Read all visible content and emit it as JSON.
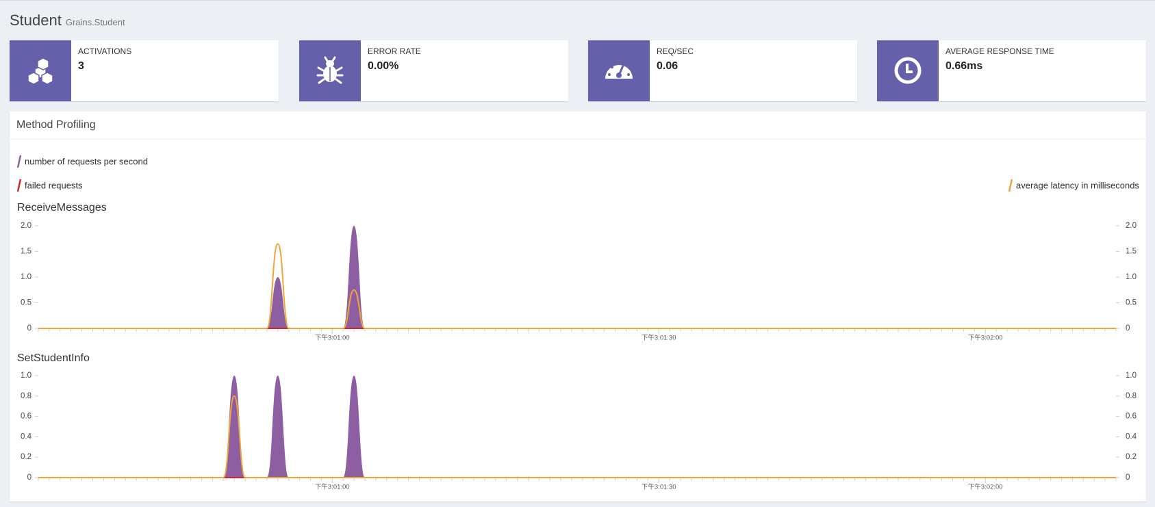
{
  "header": {
    "title": "Student",
    "subtitle": "Grains.Student"
  },
  "cards": [
    {
      "label": "ACTIVATIONS",
      "value": "3"
    },
    {
      "label": "ERROR RATE",
      "value": "0.00%"
    },
    {
      "label": "REQ/SEC",
      "value": "0.06"
    },
    {
      "label": "AVERAGE RESPONSE TIME",
      "value": "0.66ms"
    }
  ],
  "panel": {
    "title": "Method Profiling"
  },
  "chart_data": [
    {
      "type": "line",
      "title": "ReceiveMessages",
      "categories": [
        null,
        null,
        null,
        null,
        null,
        null,
        null,
        null,
        null,
        null,
        null,
        null,
        null,
        null,
        null,
        null,
        null,
        null,
        null,
        null,
        null,
        null,
        null,
        null,
        null,
        null,
        null,
        "下午3:01:00",
        null,
        null,
        null,
        null,
        null,
        null,
        null,
        null,
        null,
        null,
        null,
        null,
        null,
        null,
        null,
        null,
        null,
        null,
        null,
        null,
        null,
        null,
        null,
        null,
        null,
        null,
        null,
        null,
        null,
        "下午3:01:30",
        null,
        null,
        null,
        null,
        null,
        null,
        null,
        null,
        null,
        null,
        null,
        null,
        null,
        null,
        null,
        null,
        null,
        null,
        null,
        null,
        null,
        null,
        null,
        null,
        null,
        null,
        null,
        null,
        null,
        "下午3:02:00",
        null,
        null,
        null,
        null,
        null,
        null,
        null,
        null,
        null,
        null,
        null,
        null
      ],
      "ylim": [
        0,
        2
      ],
      "yticks": [
        0,
        0.5,
        {
          "value": 1,
          "label": "1.0"
        },
        1.5,
        {
          "value": 2,
          "label": "2.0"
        }
      ],
      "y2lim": [
        0,
        2
      ],
      "y2ticks": [
        0,
        0.5,
        {
          "value": 1,
          "label": "1.0"
        },
        1.5,
        {
          "value": 2,
          "label": "2.0"
        }
      ],
      "series": [
        {
          "name": "number of requests per second",
          "color": "#8e5ea2",
          "fill": true,
          "values": [
            0,
            0,
            0,
            0,
            0,
            0,
            0,
            0,
            0,
            0,
            0,
            0,
            0,
            0,
            0,
            0,
            0,
            0,
            0,
            0,
            0,
            0,
            1,
            0,
            0,
            0,
            0,
            0,
            0,
            2,
            0,
            0,
            0,
            0,
            0,
            0,
            0,
            0,
            0,
            0,
            0,
            0,
            0,
            0,
            0,
            0,
            0,
            0,
            0,
            0,
            0,
            0,
            0,
            0,
            0,
            0,
            0,
            0,
            0,
            0,
            0,
            0,
            0,
            0,
            0,
            0,
            0,
            0,
            0,
            0,
            0,
            0,
            0,
            0,
            0,
            0,
            0,
            0,
            0,
            0,
            0,
            0,
            0,
            0,
            0,
            0,
            0,
            0,
            0,
            0,
            0,
            0,
            0,
            0,
            0,
            0,
            0,
            0,
            0,
            0
          ]
        },
        {
          "name": "failed requests",
          "color": "#d62728",
          "values": [
            0,
            0,
            0,
            0,
            0,
            0,
            0,
            0,
            0,
            0,
            0,
            0,
            0,
            0,
            0,
            0,
            0,
            0,
            0,
            0,
            0,
            0,
            0,
            0,
            0,
            0,
            0,
            0,
            0,
            0,
            0,
            0,
            0,
            0,
            0,
            0,
            0,
            0,
            0,
            0,
            0,
            0,
            0,
            0,
            0,
            0,
            0,
            0,
            0,
            0,
            0,
            0,
            0,
            0,
            0,
            0,
            0,
            0,
            0,
            0,
            0,
            0,
            0,
            0,
            0,
            0,
            0,
            0,
            0,
            0,
            0,
            0,
            0,
            0,
            0,
            0,
            0,
            0,
            0,
            0,
            0,
            0,
            0,
            0,
            0,
            0,
            0,
            0,
            0,
            0,
            0,
            0,
            0,
            0,
            0,
            0,
            0,
            0,
            0,
            0
          ]
        },
        {
          "name": "average latency in milliseconds",
          "color": "#f0a53c",
          "axis": "y2",
          "values": [
            0,
            0,
            0,
            0,
            0,
            0,
            0,
            0,
            0,
            0,
            0,
            0,
            0,
            0,
            0,
            0,
            0,
            0,
            0,
            0,
            0,
            0,
            1.65,
            0,
            0,
            0,
            0,
            0,
            0,
            0.75,
            0,
            0,
            0,
            0,
            0,
            0,
            0,
            0,
            0,
            0,
            0,
            0,
            0,
            0,
            0,
            0,
            0,
            0,
            0,
            0,
            0,
            0,
            0,
            0,
            0,
            0,
            0,
            0,
            0,
            0,
            0,
            0,
            0,
            0,
            0,
            0,
            0,
            0,
            0,
            0,
            0,
            0,
            0,
            0,
            0,
            0,
            0,
            0,
            0,
            0,
            0,
            0,
            0,
            0,
            0,
            0,
            0,
            0,
            0,
            0,
            0,
            0,
            0,
            0,
            0,
            0,
            0,
            0,
            0,
            0
          ]
        }
      ]
    },
    {
      "type": "line",
      "title": "SetStudentInfo",
      "categories": [
        null,
        null,
        null,
        null,
        null,
        null,
        null,
        null,
        null,
        null,
        null,
        null,
        null,
        null,
        null,
        null,
        null,
        null,
        null,
        null,
        null,
        null,
        null,
        null,
        null,
        null,
        null,
        "下午3:01:00",
        null,
        null,
        null,
        null,
        null,
        null,
        null,
        null,
        null,
        null,
        null,
        null,
        null,
        null,
        null,
        null,
        null,
        null,
        null,
        null,
        null,
        null,
        null,
        null,
        null,
        null,
        null,
        null,
        null,
        "下午3:01:30",
        null,
        null,
        null,
        null,
        null,
        null,
        null,
        null,
        null,
        null,
        null,
        null,
        null,
        null,
        null,
        null,
        null,
        null,
        null,
        null,
        null,
        null,
        null,
        null,
        null,
        null,
        null,
        null,
        null,
        "下午3:02:00",
        null,
        null,
        null,
        null,
        null,
        null,
        null,
        null,
        null,
        null,
        null,
        null
      ],
      "ylim": [
        0,
        1
      ],
      "yticks": [
        0,
        0.2,
        0.4,
        0.6,
        0.8,
        {
          "value": 1,
          "label": "1.0"
        }
      ],
      "y2lim": [
        0,
        1
      ],
      "y2ticks": [
        0,
        0.2,
        0.4,
        0.6,
        0.8,
        {
          "value": 1,
          "label": "1.0"
        }
      ],
      "series": [
        {
          "color": "#8e5ea2",
          "fill": true,
          "values": [
            0,
            0,
            0,
            0,
            0,
            0,
            0,
            0,
            0,
            0,
            0,
            0,
            0,
            0,
            0,
            0,
            0,
            0,
            1,
            0,
            0,
            0,
            1,
            0,
            0,
            0,
            0,
            0,
            0,
            1,
            0,
            0,
            0,
            0,
            0,
            0,
            0,
            0,
            0,
            0,
            0,
            0,
            0,
            0,
            0,
            0,
            0,
            0,
            0,
            0,
            0,
            0,
            0,
            0,
            0,
            0,
            0,
            0,
            0,
            0,
            0,
            0,
            0,
            0,
            0,
            0,
            0,
            0,
            0,
            0,
            0,
            0,
            0,
            0,
            0,
            0,
            0,
            0,
            0,
            0,
            0,
            0,
            0,
            0,
            0,
            0,
            0,
            0,
            0,
            0,
            0,
            0,
            0,
            0,
            0,
            0,
            0,
            0,
            0,
            0
          ]
        },
        {
          "color": "#d62728",
          "values": [
            0,
            0,
            0,
            0,
            0,
            0,
            0,
            0,
            0,
            0,
            0,
            0,
            0,
            0,
            0,
            0,
            0,
            0,
            0,
            0,
            0,
            0,
            0,
            0,
            0,
            0,
            0,
            0,
            0,
            0,
            0,
            0,
            0,
            0,
            0,
            0,
            0,
            0,
            0,
            0,
            0,
            0,
            0,
            0,
            0,
            0,
            0,
            0,
            0,
            0,
            0,
            0,
            0,
            0,
            0,
            0,
            0,
            0,
            0,
            0,
            0,
            0,
            0,
            0,
            0,
            0,
            0,
            0,
            0,
            0,
            0,
            0,
            0,
            0,
            0,
            0,
            0,
            0,
            0,
            0,
            0,
            0,
            0,
            0,
            0,
            0,
            0,
            0,
            0,
            0,
            0,
            0,
            0,
            0,
            0,
            0,
            0,
            0,
            0,
            0
          ]
        },
        {
          "color": "#f0a53c",
          "axis": "y2",
          "values": [
            0,
            0,
            0,
            0,
            0,
            0,
            0,
            0,
            0,
            0,
            0,
            0,
            0,
            0,
            0,
            0,
            0,
            0,
            0.8,
            0,
            0,
            0,
            0,
            0,
            0,
            0,
            0,
            0,
            0,
            0,
            0,
            0,
            0,
            0,
            0,
            0,
            0,
            0,
            0,
            0,
            0,
            0,
            0,
            0,
            0,
            0,
            0,
            0,
            0,
            0,
            0,
            0,
            0,
            0,
            0,
            0,
            0,
            0,
            0,
            0,
            0,
            0,
            0,
            0,
            0,
            0,
            0,
            0,
            0,
            0,
            0,
            0,
            0,
            0,
            0,
            0,
            0,
            0,
            0,
            0,
            0,
            0,
            0,
            0,
            0,
            0,
            0,
            0,
            0,
            0,
            0,
            0,
            0,
            0,
            0,
            0,
            0,
            0,
            0,
            0
          ]
        }
      ]
    }
  ]
}
